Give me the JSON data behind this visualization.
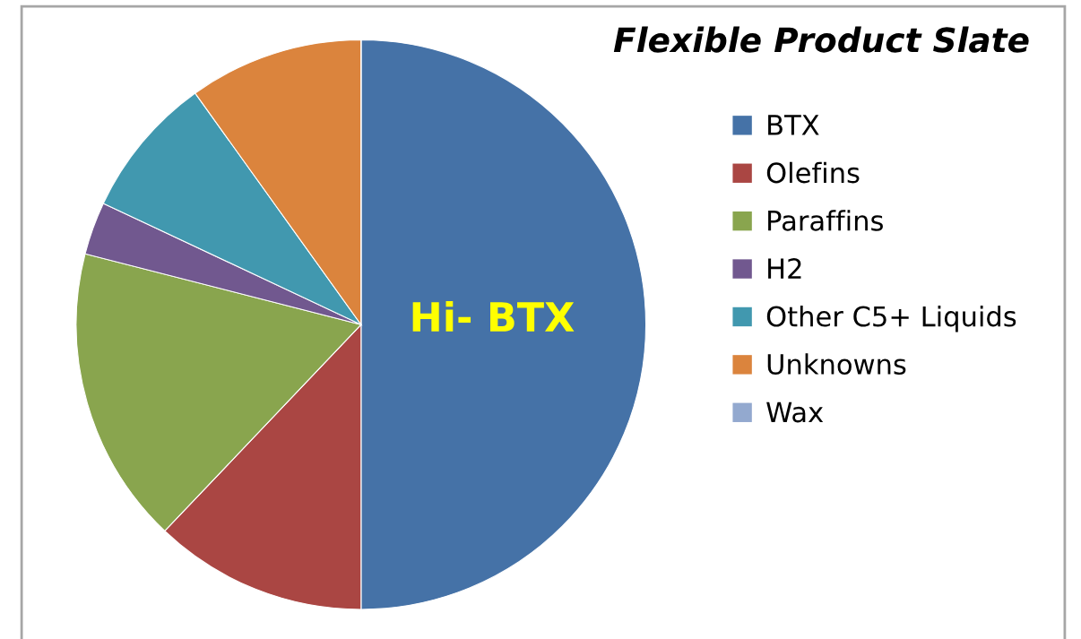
{
  "chart_data": {
    "type": "pie",
    "title": "Flexible Product Slate",
    "categories": [
      "BTX",
      "Olefins",
      "Paraffins",
      "H2",
      "Other C5+ Liquids",
      "Unknowns",
      "Wax"
    ],
    "values": [
      50,
      12.1,
      16.9,
      3.0,
      8.1,
      9.9,
      0
    ],
    "colors": [
      "#4572a7",
      "#aa4643",
      "#89a54e",
      "#71588f",
      "#4198af",
      "#db843d",
      "#93a9cf"
    ],
    "annotations": [
      {
        "text": "Hi- BTX",
        "x": "BTX"
      }
    ],
    "legend": "right"
  }
}
